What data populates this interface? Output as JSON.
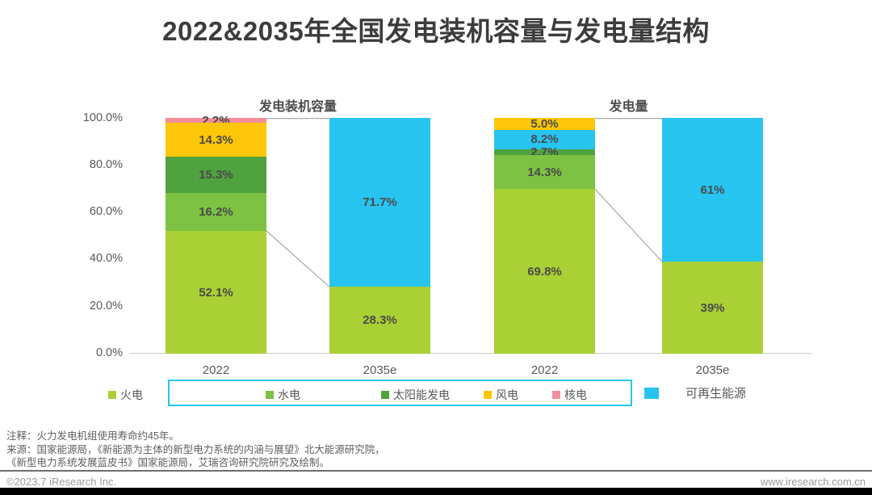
{
  "title": "2022&2035年全国发电装机容量与发电量结构",
  "colors": {
    "thermal": "#a9d035",
    "hydro": "#7dc242",
    "solar": "#4fa23e",
    "wind": "#fdc608",
    "nuclear": "#f18e99",
    "renewable": "#27c4f0",
    "axis_line": "#c9c9c9",
    "connector_line": "#a8a8a8",
    "legend_box_border": "#27c4f0"
  },
  "y_axis": {
    "ticks": [
      "100.0%",
      "80.0%",
      "60.0%",
      "40.0%",
      "20.0%",
      "0.0%"
    ]
  },
  "chart_data": [
    {
      "type": "bar",
      "stacked": true,
      "title": "发电装机容量",
      "categories": [
        "2022",
        "2035e"
      ],
      "unit": "percent",
      "ylim": [
        0,
        100
      ],
      "grid": false,
      "bars": [
        {
          "category": "2022",
          "segments_top_to_bottom": [
            {
              "name": "核电",
              "value": 2.2,
              "label": "2.2%",
              "color": "nuclear"
            },
            {
              "name": "风电",
              "value": 14.3,
              "label": "14.3%",
              "color": "wind"
            },
            {
              "name": "太阳能发电",
              "value": 15.3,
              "label": "15.3%",
              "color": "solar"
            },
            {
              "name": "水电",
              "value": 16.2,
              "label": "16.2%",
              "color": "hydro"
            },
            {
              "name": "火电",
              "value": 52.1,
              "label": "52.1%",
              "color": "thermal"
            }
          ]
        },
        {
          "category": "2035e",
          "segments_top_to_bottom": [
            {
              "name": "可再生能源",
              "value": 71.7,
              "label": "71.7%",
              "color": "renewable"
            },
            {
              "name": "火电",
              "value": 28.3,
              "label": "28.3%",
              "color": "thermal"
            }
          ]
        }
      ]
    },
    {
      "type": "bar",
      "stacked": true,
      "title": "发电量",
      "categories": [
        "2022",
        "2035e"
      ],
      "unit": "percent",
      "ylim": [
        0,
        100
      ],
      "grid": false,
      "bars": [
        {
          "category": "2022",
          "segments_top_to_bottom": [
            {
              "name": "风电",
              "value": 5.0,
              "label": "5.0%",
              "color": "wind"
            },
            {
              "name": "可再生能源",
              "value": 8.2,
              "label": "8.2%",
              "color": "renewable"
            },
            {
              "name": "太阳能发电",
              "value": 2.7,
              "label": "2.7%",
              "color": "solar"
            },
            {
              "name": "水电",
              "value": 14.3,
              "label": "14.3%",
              "color": "hydro"
            },
            {
              "name": "火电",
              "value": 69.8,
              "label": "69.8%",
              "color": "thermal"
            }
          ]
        },
        {
          "category": "2035e",
          "segments_top_to_bottom": [
            {
              "name": "可再生能源",
              "value": 61,
              "label": "61%",
              "color": "renewable"
            },
            {
              "name": "火电",
              "value": 39,
              "label": "39%",
              "color": "thermal"
            }
          ]
        }
      ]
    }
  ],
  "legend": {
    "items": [
      {
        "label": "火电",
        "color": "thermal"
      },
      {
        "label": "水电",
        "color": "hydro"
      },
      {
        "label": "太阳能发电",
        "color": "solar"
      },
      {
        "label": "风电",
        "color": "wind"
      },
      {
        "label": "核电",
        "color": "nuclear"
      },
      {
        "label": "可再生能源",
        "color": "renewable"
      }
    ]
  },
  "notes": {
    "line1": "注释：火力发电机组使用寿命约45年。",
    "line2": "来源：国家能源局，《新能源为主体的新型电力系统的内涵与展望》北大能源研究院，",
    "line3": "《新型电力系统发展蓝皮书》国家能源局，艾瑞咨询研究院研究及绘制。"
  },
  "footer": {
    "copyright": "©2023.7 iResearch Inc.",
    "website": "www.iresearch.com.cn"
  }
}
